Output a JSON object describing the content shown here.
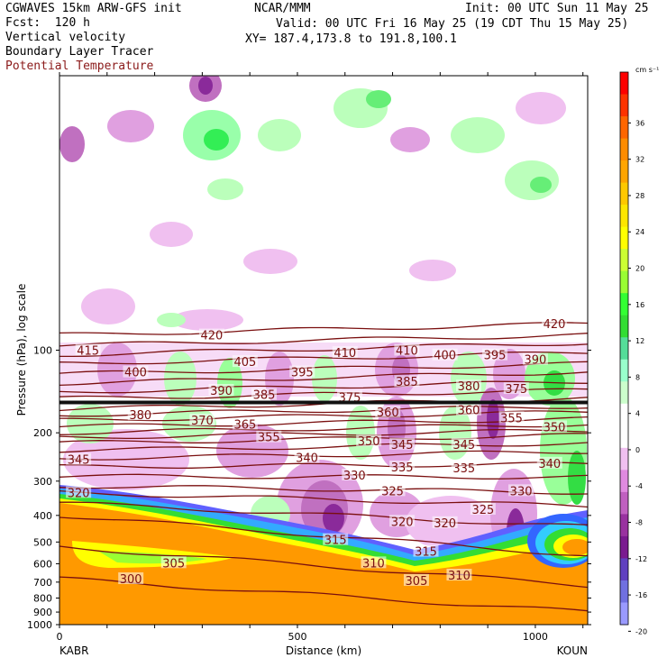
{
  "header": {
    "model": "CGWAVES 15km ARW-GFS init",
    "fcst": "Fcst:  120 h",
    "center": "NCAR/MMM",
    "init": "Init: 00 UTC Sun 11 May 25",
    "valid": "Valid: 00 UTC Fri 16 May 25 (19 CDT Thu 15 May 25)",
    "xy": "XY= 187.4,173.8 to 191.8,100.1",
    "field1": "Vertical velocity",
    "field2": "Boundary Layer Tracer",
    "field3": "Potential Temperature"
  },
  "colors": {
    "theta_contour": "#7a0f0f",
    "field3_label": "#8b1a1a"
  },
  "chart_data": {
    "type": "heatmap",
    "xlabel": "Distance (km)",
    "ylabel": "Pressure (hPa), log scale",
    "xlim": [
      0,
      1110
    ],
    "ylim": [
      1000,
      10
    ],
    "yscale": "log",
    "x_ticks": [
      0,
      500,
      1000
    ],
    "y_ticks": [
      100,
      200,
      300,
      400,
      500,
      600,
      700,
      800,
      900,
      1000
    ],
    "endpoints": {
      "left": "KABR",
      "right": "KOUN"
    },
    "colorbar": {
      "unit": "cm s⁻¹",
      "ticks": [
        "36",
        "32",
        "28",
        "24",
        "20",
        "16",
        "12",
        "8",
        "4",
        "0",
        "-4",
        "-8",
        "-12",
        "-16",
        "-20"
      ],
      "colors": [
        "#ff0000",
        "#ff3300",
        "#ff6600",
        "#ff8c00",
        "#ffa500",
        "#ffc800",
        "#ffe600",
        "#ffff00",
        "#ccff33",
        "#99ff33",
        "#33ff33",
        "#33dd33",
        "#55dd99",
        "#99ffcc",
        "#ccffcc",
        "#ffffff",
        "#ffffff",
        "#f0c0f0",
        "#e08ae0",
        "#c060c0",
        "#9932a0",
        "#7a1a90",
        "#6040c0",
        "#7070e0",
        "#9a9aff"
      ]
    },
    "theta_contours": [
      {
        "value": 420,
        "p_left": 88,
        "p_right": 80
      },
      {
        "value": 415,
        "p_left": 96,
        "p_right": 88
      },
      {
        "value": 410,
        "p_left": 104,
        "p_right": 94
      },
      {
        "value": 405,
        "p_left": 112,
        "p_right": 102
      },
      {
        "value": 400,
        "p_left": 122,
        "p_right": 112
      },
      {
        "value": 395,
        "p_left": 132,
        "p_right": 120
      },
      {
        "value": 390,
        "p_left": 142,
        "p_right": 130
      },
      {
        "value": 385,
        "p_left": 150,
        "p_right": 140
      },
      {
        "value": 380,
        "p_left": 164,
        "p_right": 150
      },
      {
        "value": 375,
        "p_left": 172,
        "p_right": 160
      },
      {
        "value": 370,
        "p_left": 180,
        "p_right": 168
      },
      {
        "value": 365,
        "p_left": 190,
        "p_right": 178
      },
      {
        "value": 360,
        "p_left": 200,
        "p_right": 186
      },
      {
        "value": 355,
        "p_left": 208,
        "p_right": 196
      },
      {
        "value": 350,
        "p_left": 218,
        "p_right": 204
      },
      {
        "value": 345,
        "p_left": 232,
        "p_right": 218
      },
      {
        "value": 340,
        "p_left": 248,
        "p_right": 234
      },
      {
        "value": 335,
        "p_left": 266,
        "p_right": 260
      },
      {
        "value": 330,
        "p_left": 288,
        "p_right": 290
      },
      {
        "value": 325,
        "p_left": 312,
        "p_right": 330
      },
      {
        "value": 320,
        "p_left": 330,
        "p_right": 370
      },
      {
        "value": 315,
        "p_left": 360,
        "p_right": 440
      },
      {
        "value": 310,
        "p_left": 400,
        "p_right": 560
      },
      {
        "value": 305,
        "p_left": 520,
        "p_right": 720
      },
      {
        "value": 300,
        "p_left": 680,
        "p_right": 900
      }
    ],
    "theta_labels": [
      {
        "text": "420",
        "x": 320,
        "p": 88
      },
      {
        "text": "420",
        "x": 1040,
        "p": 80
      },
      {
        "text": "415",
        "x": 60,
        "p": 100
      },
      {
        "text": "410",
        "x": 600,
        "p": 102
      },
      {
        "text": "410",
        "x": 730,
        "p": 100
      },
      {
        "text": "405",
        "x": 390,
        "p": 110
      },
      {
        "text": "400",
        "x": 160,
        "p": 120
      },
      {
        "text": "400",
        "x": 810,
        "p": 104
      },
      {
        "text": "395",
        "x": 510,
        "p": 120
      },
      {
        "text": "395",
        "x": 915,
        "p": 104
      },
      {
        "text": "390",
        "x": 340,
        "p": 140
      },
      {
        "text": "390",
        "x": 1000,
        "p": 108
      },
      {
        "text": "385",
        "x": 430,
        "p": 145
      },
      {
        "text": "385",
        "x": 730,
        "p": 130
      },
      {
        "text": "380",
        "x": 170,
        "p": 172
      },
      {
        "text": "380",
        "x": 860,
        "p": 135
      },
      {
        "text": "375",
        "x": 610,
        "p": 148
      },
      {
        "text": "375",
        "x": 960,
        "p": 138
      },
      {
        "text": "370",
        "x": 300,
        "p": 180
      },
      {
        "text": "365",
        "x": 390,
        "p": 186
      },
      {
        "text": "360",
        "x": 690,
        "p": 168
      },
      {
        "text": "360",
        "x": 860,
        "p": 165
      },
      {
        "text": "355",
        "x": 440,
        "p": 207
      },
      {
        "text": "355",
        "x": 950,
        "p": 176
      },
      {
        "text": "350",
        "x": 650,
        "p": 214
      },
      {
        "text": "350",
        "x": 1040,
        "p": 190
      },
      {
        "text": "345",
        "x": 40,
        "p": 250
      },
      {
        "text": "345",
        "x": 720,
        "p": 220
      },
      {
        "text": "345",
        "x": 850,
        "p": 220
      },
      {
        "text": "340",
        "x": 520,
        "p": 246
      },
      {
        "text": "340",
        "x": 1030,
        "p": 258
      },
      {
        "text": "335",
        "x": 720,
        "p": 266
      },
      {
        "text": "335",
        "x": 850,
        "p": 268
      },
      {
        "text": "330",
        "x": 620,
        "p": 285
      },
      {
        "text": "330",
        "x": 970,
        "p": 325
      },
      {
        "text": "325",
        "x": 700,
        "p": 325
      },
      {
        "text": "325",
        "x": 890,
        "p": 380
      },
      {
        "text": "320",
        "x": 40,
        "p": 330
      },
      {
        "text": "320",
        "x": 720,
        "p": 420
      },
      {
        "text": "320",
        "x": 810,
        "p": 425
      },
      {
        "text": "315",
        "x": 580,
        "p": 490
      },
      {
        "text": "315",
        "x": 770,
        "p": 540
      },
      {
        "text": "310",
        "x": 660,
        "p": 595
      },
      {
        "text": "310",
        "x": 840,
        "p": 660
      },
      {
        "text": "305",
        "x": 240,
        "p": 595
      },
      {
        "text": "305",
        "x": 750,
        "p": 690
      },
      {
        "text": "300",
        "x": 150,
        "p": 680
      }
    ],
    "tropopause_p": 155
  }
}
